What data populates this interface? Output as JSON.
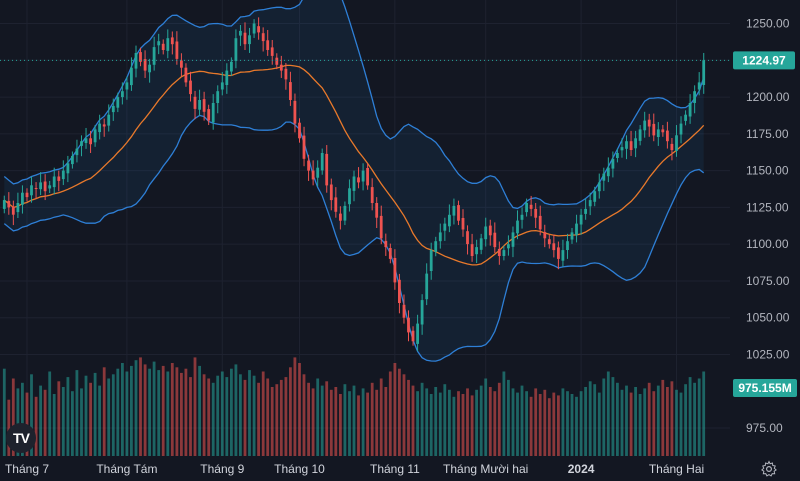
{
  "chart_data": {
    "type": "candlestick",
    "y_axis": {
      "ticks": [
        975,
        1025,
        1050,
        1075,
        1100,
        1125,
        1150,
        1175,
        1200,
        1225,
        1250
      ],
      "tick_labels": [
        "975.00",
        "1025.00",
        "1050.00",
        "1075.00",
        "1100.00",
        "1125.00",
        "1150.00",
        "1175.00",
        "1200.00",
        "1225.00",
        "1250.00"
      ],
      "range": [
        956,
        1266
      ]
    },
    "x_axis": {
      "labels": [
        {
          "text": "Tháng 7",
          "index": 5,
          "bold": false
        },
        {
          "text": "Tháng Tám",
          "index": 27,
          "bold": false
        },
        {
          "text": "Tháng 9",
          "index": 48,
          "bold": false
        },
        {
          "text": "Tháng 10",
          "index": 65,
          "bold": false
        },
        {
          "text": "Tháng 11",
          "index": 86,
          "bold": false
        },
        {
          "text": "Tháng Mười hai",
          "index": 106,
          "bold": false
        },
        {
          "text": "2024",
          "index": 127,
          "bold": true
        },
        {
          "text": "Tháng Hai",
          "index": 148,
          "bold": false
        }
      ]
    },
    "last_price": 1224.97,
    "last_price_label": "1224.97",
    "last_volume_label": "975.155M",
    "closes": [
      1130,
      1125,
      1120,
      1128,
      1135,
      1132,
      1140,
      1138,
      1142,
      1136,
      1140,
      1146,
      1143,
      1150,
      1155,
      1160,
      1165,
      1170,
      1172,
      1168,
      1178,
      1182,
      1180,
      1188,
      1194,
      1200,
      1204,
      1210,
      1220,
      1230,
      1224,
      1218,
      1222,
      1234,
      1238,
      1232,
      1240,
      1236,
      1226,
      1220,
      1210,
      1202,
      1192,
      1198,
      1190,
      1184,
      1196,
      1204,
      1210,
      1218,
      1224,
      1240,
      1245,
      1236,
      1242,
      1250,
      1244,
      1238,
      1232,
      1228,
      1222,
      1218,
      1212,
      1198,
      1182,
      1172,
      1158,
      1150,
      1144,
      1152,
      1162,
      1140,
      1130,
      1122,
      1116,
      1126,
      1138,
      1146,
      1142,
      1150,
      1140,
      1128,
      1118,
      1104,
      1098,
      1090,
      1074,
      1060,
      1050,
      1040,
      1034,
      1046,
      1062,
      1080,
      1096,
      1102,
      1108,
      1114,
      1120,
      1126,
      1116,
      1110,
      1100,
      1092,
      1098,
      1104,
      1112,
      1106,
      1098,
      1092,
      1096,
      1100,
      1108,
      1116,
      1120,
      1128,
      1124,
      1118,
      1110,
      1104,
      1100,
      1096,
      1090,
      1096,
      1102,
      1108,
      1114,
      1120,
      1124,
      1130,
      1136,
      1142,
      1148,
      1152,
      1158,
      1162,
      1166,
      1170,
      1164,
      1172,
      1178,
      1184,
      1180,
      1174,
      1178,
      1176,
      1170,
      1164,
      1174,
      1182,
      1188,
      1196,
      1204,
      1210,
      1225
    ],
    "volumes": [
      62,
      40,
      55,
      48,
      52,
      45,
      58,
      42,
      50,
      47,
      60,
      44,
      53,
      49,
      56,
      46,
      61,
      48,
      57,
      52,
      59,
      50,
      63,
      55,
      58,
      62,
      66,
      60,
      64,
      68,
      70,
      65,
      62,
      67,
      61,
      64,
      60,
      66,
      63,
      59,
      62,
      56,
      70,
      64,
      58,
      55,
      52,
      57,
      60,
      56,
      62,
      65,
      58,
      54,
      61,
      57,
      52,
      60,
      55,
      49,
      51,
      54,
      56,
      63,
      70,
      66,
      58,
      52,
      48,
      55,
      50,
      53,
      47,
      49,
      44,
      51,
      46,
      50,
      43,
      48,
      45,
      52,
      47,
      55,
      49,
      60,
      66,
      62,
      58,
      54,
      50,
      46,
      52,
      48,
      44,
      49,
      45,
      51,
      47,
      42,
      46,
      44,
      48,
      43,
      47,
      50,
      55,
      49,
      46,
      52,
      60,
      54,
      48,
      45,
      50,
      46,
      42,
      48,
      44,
      47,
      41,
      45,
      43,
      48,
      46,
      44,
      42,
      46,
      49,
      53,
      51,
      45,
      55,
      60,
      56,
      52,
      47,
      50,
      45,
      49,
      44,
      48,
      52,
      46,
      50,
      54,
      49,
      53,
      47,
      45,
      51,
      56,
      52,
      55,
      60
    ]
  }
}
